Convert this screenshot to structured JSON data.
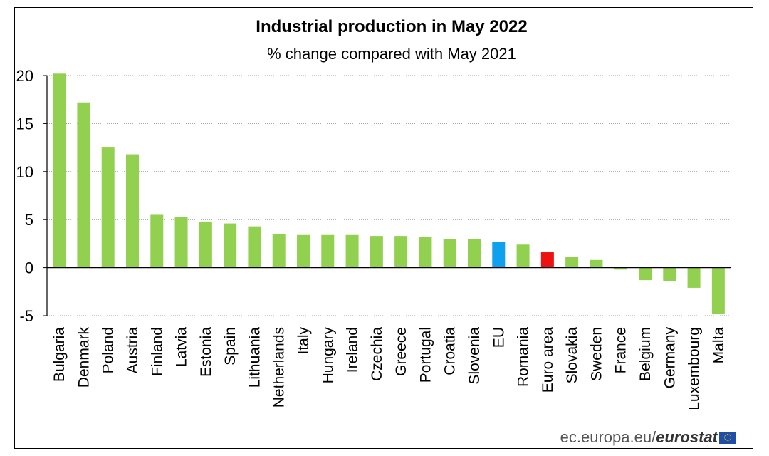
{
  "chart_data": {
    "type": "bar",
    "title": "Industrial production in May 2022",
    "subtitle": "% change compared with May 2021",
    "xlabel": "",
    "ylabel": "",
    "ylim": [
      -5,
      20
    ],
    "yticks": [
      -5,
      0,
      5,
      10,
      15,
      20
    ],
    "grid": true,
    "categories": [
      "Bulgaria",
      "Denmark",
      "Poland",
      "Austria",
      "Finland",
      "Latvia",
      "Estonia",
      "Spain",
      "Lithuania",
      "Netherlands",
      "Italy",
      "Hungary",
      "Ireland",
      "Czechia",
      "Greece",
      "Portugal",
      "Croatia",
      "Slovenia",
      "EU",
      "Romania",
      "Euro area",
      "Slovakia",
      "Sweden",
      "France",
      "Belgium",
      "Germany",
      "Luxembourg",
      "Malta"
    ],
    "values": [
      20.2,
      17.2,
      12.5,
      11.8,
      5.5,
      5.3,
      4.8,
      4.6,
      4.3,
      3.5,
      3.4,
      3.4,
      3.4,
      3.3,
      3.3,
      3.2,
      3.0,
      3.0,
      2.7,
      2.4,
      1.6,
      1.1,
      0.8,
      -0.2,
      -1.3,
      -1.4,
      -2.1,
      -4.8
    ],
    "colors": {
      "default": "#92d050",
      "EU": "#0fa0ee",
      "Euro area": "#ee1111"
    }
  },
  "footer": {
    "source_url": "ec.europa.eu/",
    "source_brand": "eurostat"
  }
}
